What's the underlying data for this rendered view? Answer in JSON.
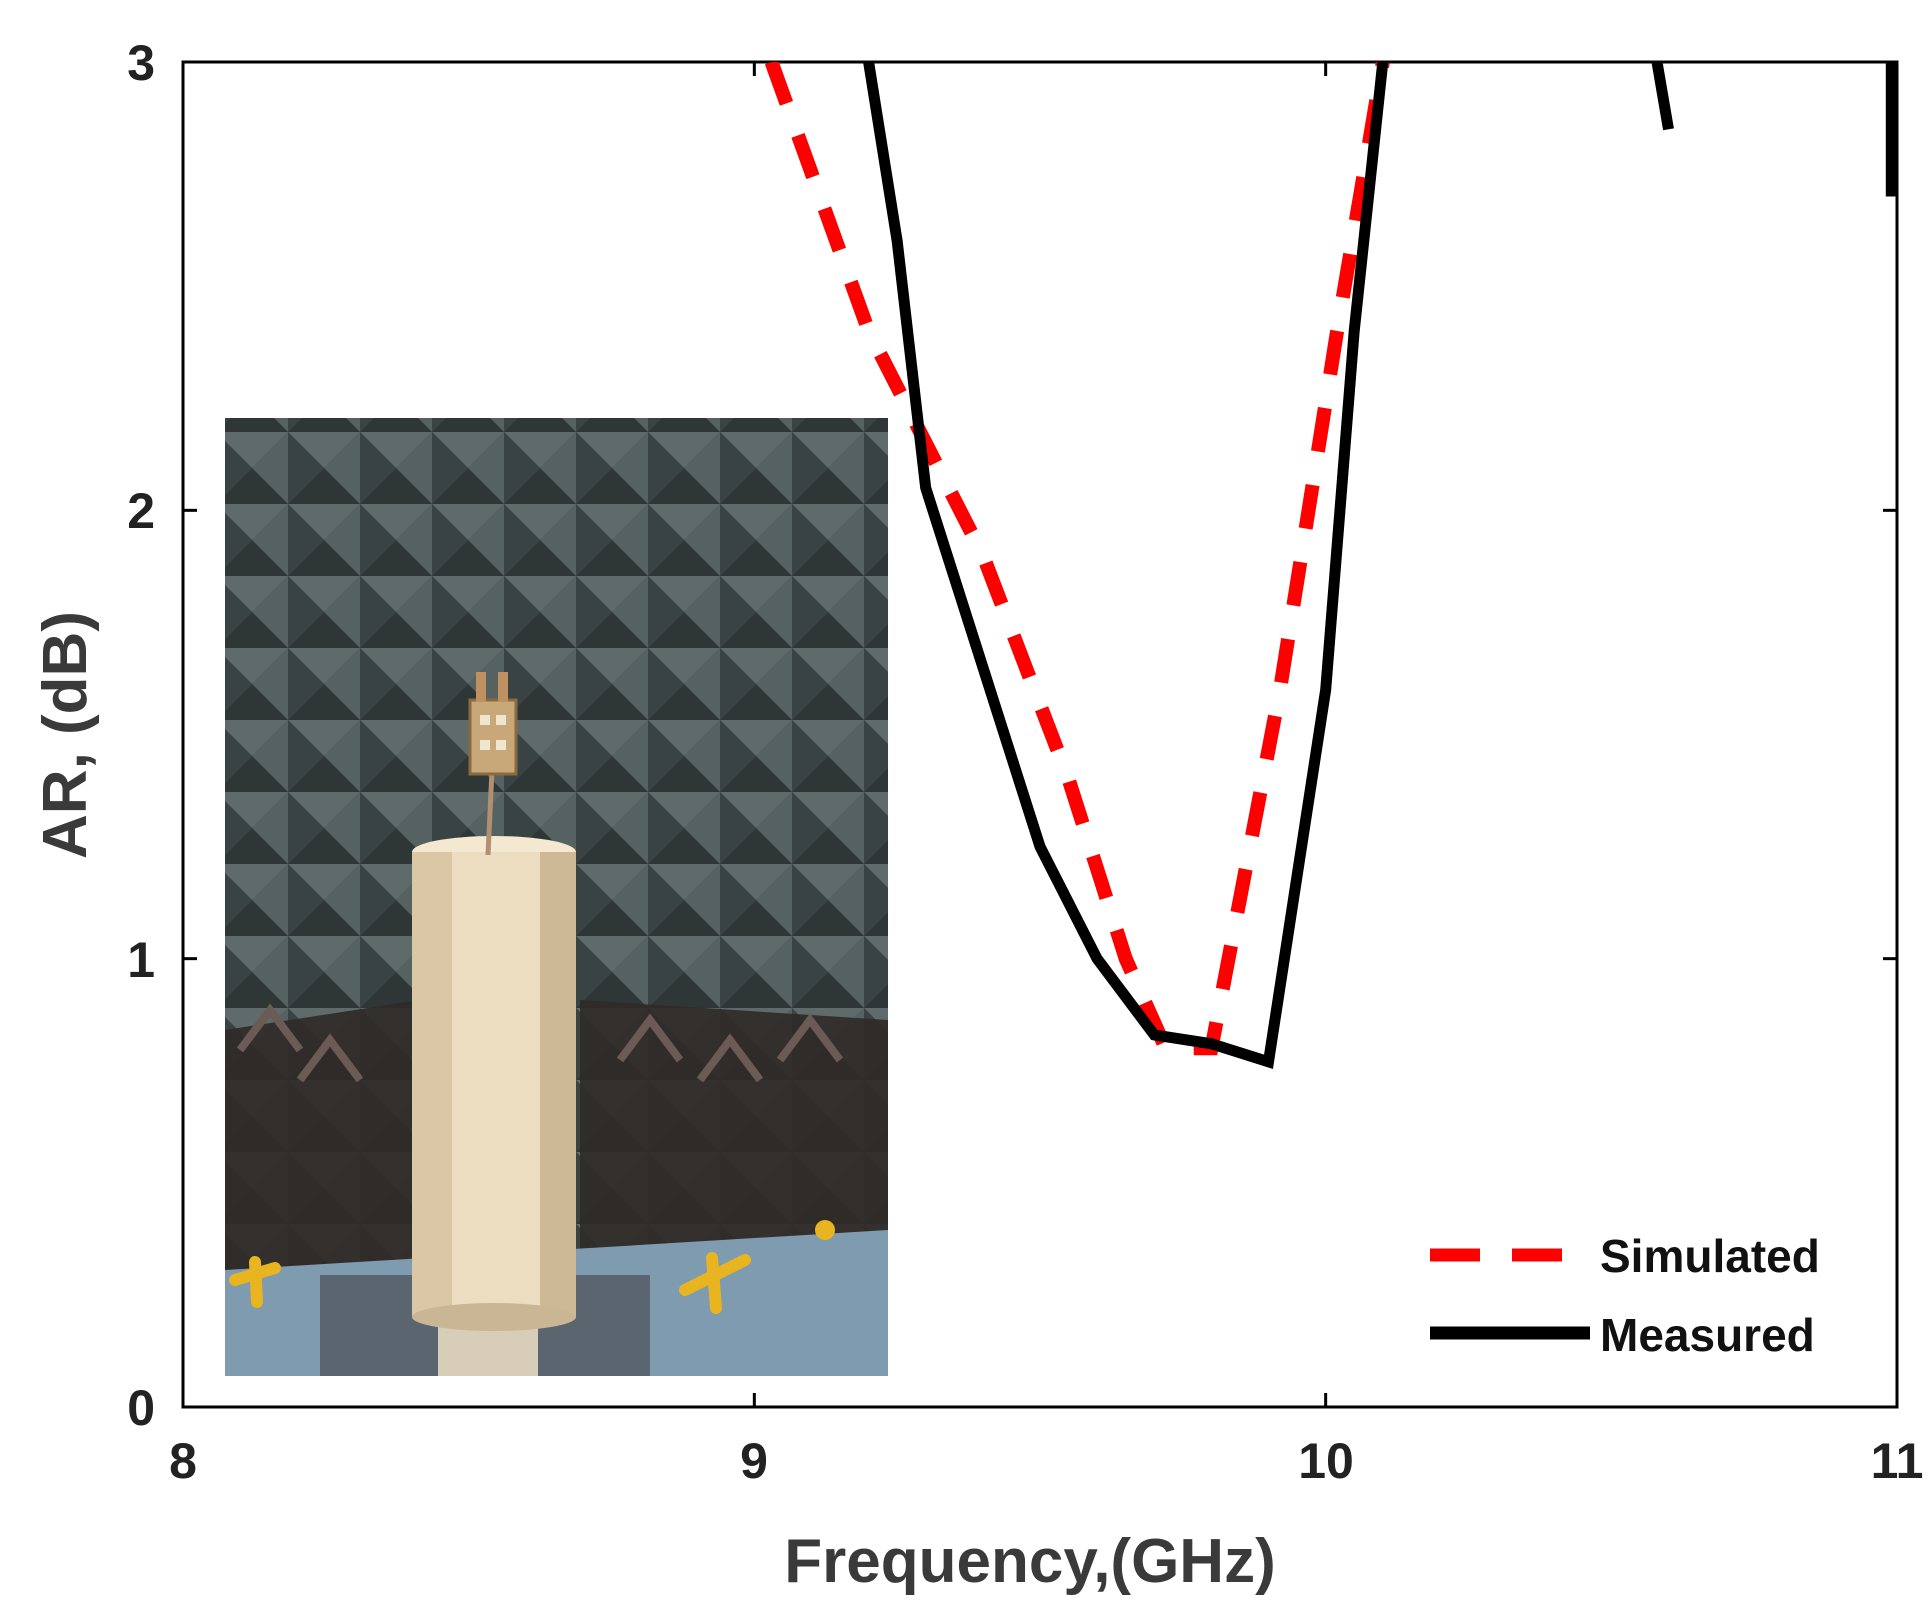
{
  "chart_data": {
    "type": "line",
    "title": "",
    "xlabel": "Frequency,(GHz)",
    "ylabel": "AR, (dB)",
    "xlim": [
      8,
      11
    ],
    "ylim": [
      0,
      3
    ],
    "xticks": [
      "8",
      "9",
      "10",
      "11"
    ],
    "yticks": [
      "0",
      "1",
      "2",
      "3"
    ],
    "grid": false,
    "legend_position": "bottom-right",
    "series": [
      {
        "name": "Simulated",
        "color": "#ff0000",
        "style": "dashed",
        "x": [
          9.03,
          9.2,
          9.4,
          9.55,
          9.65,
          9.72,
          9.8,
          9.92,
          10.02,
          10.1
        ],
        "y": [
          3.0,
          2.4,
          1.9,
          1.4,
          1.0,
          0.8,
          0.8,
          1.6,
          2.4,
          3.0
        ]
      },
      {
        "name": "Measured",
        "color": "#000000",
        "style": "solid",
        "segments": [
          {
            "x": [
              9.2,
              9.25,
              9.3,
              9.4,
              9.5,
              9.6,
              9.7,
              9.8,
              9.9,
              10.0,
              10.05,
              10.1
            ],
            "y": [
              3.0,
              2.6,
              2.05,
              1.65,
              1.25,
              1.0,
              0.83,
              0.81,
              0.77,
              1.6,
              2.4,
              3.0
            ]
          },
          {
            "x": [
              10.58,
              10.6
            ],
            "y": [
              3.0,
              2.85
            ]
          },
          {
            "x": [
              10.99,
              10.99
            ],
            "y": [
              3.0,
              2.7
            ]
          }
        ]
      }
    ]
  },
  "inset_photo": {
    "description_icon": "anechoic-chamber-photo-icon"
  }
}
